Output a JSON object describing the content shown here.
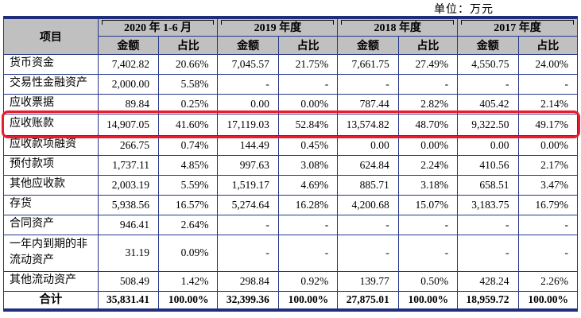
{
  "unit_label": "单位：万元",
  "colors": {
    "header_bg": "#c0c0c0",
    "cell_border": "#26358c",
    "thick_border": "#1f2d7c",
    "highlight_red": "#e81c2e"
  },
  "table": {
    "item_header": "项目",
    "amount_header": "金额",
    "ratio_header": "占比",
    "year_groups": [
      "2020 年 1-6 月",
      "2019 年度",
      "2018 年度",
      "2017 年度"
    ],
    "rows": [
      {
        "label": "货币资金",
        "highlighted": false,
        "cells": [
          "7,402.82",
          "20.66%",
          "7,045.57",
          "21.75%",
          "7,661.75",
          "27.49%",
          "4,550.75",
          "24.00%"
        ]
      },
      {
        "label": "交易性金融资产",
        "highlighted": false,
        "cells": [
          "2,000.00",
          "5.58%",
          "-",
          "-",
          "-",
          "-",
          "-",
          "-"
        ]
      },
      {
        "label": "应收票据",
        "highlighted": false,
        "cells": [
          "89.84",
          "0.25%",
          "0.00",
          "0.00%",
          "787.44",
          "2.82%",
          "405.42",
          "2.14%"
        ]
      },
      {
        "label": "应收账款",
        "highlighted": true,
        "cells": [
          "14,907.05",
          "41.60%",
          "17,119.03",
          "52.84%",
          "13,574.82",
          "48.70%",
          "9,322.50",
          "49.17%"
        ]
      },
      {
        "label": "应收款项融资",
        "highlighted": false,
        "cells": [
          "266.75",
          "0.74%",
          "144.49",
          "0.45%",
          "0.00",
          "0.00%",
          "0.00",
          "0.00%"
        ]
      },
      {
        "label": "预付款项",
        "highlighted": false,
        "cells": [
          "1,737.11",
          "4.85%",
          "997.63",
          "3.08%",
          "624.84",
          "2.24%",
          "410.56",
          "2.17%"
        ]
      },
      {
        "label": "其他应收款",
        "highlighted": false,
        "cells": [
          "2,003.19",
          "5.59%",
          "1,519.17",
          "4.69%",
          "885.71",
          "3.18%",
          "658.51",
          "3.47%"
        ]
      },
      {
        "label": "存货",
        "highlighted": false,
        "cells": [
          "5,938.56",
          "16.57%",
          "5,274.64",
          "16.28%",
          "4,200.68",
          "15.07%",
          "3,183.75",
          "16.79%"
        ]
      },
      {
        "label": "合同资产",
        "highlighted": false,
        "cells": [
          "946.41",
          "2.64%",
          "-",
          "-",
          "-",
          "-",
          "-",
          "-"
        ]
      },
      {
        "label": "一年内到期的非流动资产",
        "highlighted": false,
        "cells": [
          "31.19",
          "0.09%",
          "-",
          "-",
          "-",
          "-",
          "-",
          "-"
        ]
      },
      {
        "label": "其他流动资产",
        "highlighted": false,
        "cells": [
          "508.49",
          "1.42%",
          "298.84",
          "0.92%",
          "139.77",
          "0.50%",
          "428.24",
          "2.26%"
        ]
      }
    ],
    "total_row": {
      "label": "合计",
      "cells": [
        "35,831.41",
        "100.00%",
        "32,399.36",
        "100.00%",
        "27,875.01",
        "100.00%",
        "18,959.72",
        "100.00%"
      ]
    }
  }
}
